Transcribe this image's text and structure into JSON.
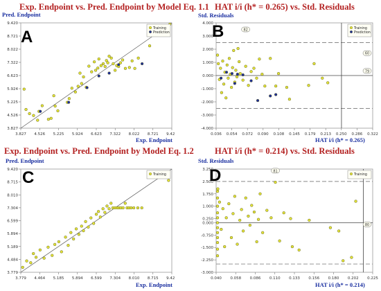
{
  "chart_data": [
    {
      "panel": "A",
      "type": "scatter",
      "title": "Exp. Endpoint vs. Pred. Endpoint by Model Eq. 1.1",
      "xlabel": "Exp. Endpoint",
      "ylabel": "Pred. Endpoint",
      "xticks": [
        "3.827",
        "4.526",
        "5.225",
        "5.924",
        "6.623",
        "7.322",
        "8.022",
        "8.721",
        "9.420"
      ],
      "yticks": [
        "3.827",
        "4.526",
        "5.225",
        "5.924",
        "6.623",
        "7.322",
        "8.022",
        "8.721",
        "9.420"
      ],
      "xlim": [
        3.827,
        9.42
      ],
      "ylim": [
        3.827,
        9.42
      ],
      "reference_line": "y = x",
      "legend_position": "top-right",
      "colors": {
        "Training": "#e3e33a",
        "Prediction": "#1c2e9a"
      },
      "series": [
        {
          "name": "Training",
          "points": [
            [
              3.95,
              5.9
            ],
            [
              4.02,
              4.82
            ],
            [
              4.15,
              4.6
            ],
            [
              4.3,
              4.5
            ],
            [
              4.45,
              4.25
            ],
            [
              4.5,
              4.72
            ],
            [
              4.62,
              5.02
            ],
            [
              4.85,
              4.3
            ],
            [
              4.95,
              4.35
            ],
            [
              5.05,
              5.55
            ],
            [
              5.1,
              5.0
            ],
            [
              5.2,
              4.75
            ],
            [
              5.55,
              5.2
            ],
            [
              5.62,
              5.4
            ],
            [
              5.72,
              5.95
            ],
            [
              5.85,
              5.75
            ],
            [
              5.95,
              6.05
            ],
            [
              6.02,
              6.75
            ],
            [
              6.08,
              6.2
            ],
            [
              6.15,
              6.55
            ],
            [
              6.25,
              6.0
            ],
            [
              6.35,
              7.12
            ],
            [
              6.45,
              6.82
            ],
            [
              6.55,
              7.35
            ],
            [
              6.6,
              6.9
            ],
            [
              6.68,
              7.02
            ],
            [
              6.72,
              7.5
            ],
            [
              6.8,
              7.15
            ],
            [
              6.88,
              7.25
            ],
            [
              6.95,
              7.1
            ],
            [
              7.0,
              7.42
            ],
            [
              7.05,
              7.3
            ],
            [
              7.1,
              7.65
            ],
            [
              7.18,
              7.55
            ],
            [
              7.25,
              7.25
            ],
            [
              7.32,
              6.9
            ],
            [
              7.38,
              7.15
            ],
            [
              7.45,
              7.1
            ],
            [
              7.52,
              7.3
            ],
            [
              7.6,
              7.45
            ],
            [
              7.7,
              7.0
            ],
            [
              7.85,
              7.05
            ],
            [
              7.95,
              7.4
            ],
            [
              8.05,
              7.0
            ],
            [
              8.18,
              7.55
            ],
            [
              8.6,
              8.2
            ],
            [
              9.35,
              9.35
            ]
          ]
        },
        {
          "name": "Prediction",
          "points": [
            [
              4.55,
              4.72
            ],
            [
              6.28,
              5.98
            ],
            [
              6.72,
              6.6
            ],
            [
              7.1,
              6.75
            ],
            [
              7.45,
              7.2
            ],
            [
              8.32,
              7.25
            ],
            [
              5.6,
              5.2
            ]
          ]
        }
      ]
    },
    {
      "panel": "B",
      "type": "scatter",
      "title": "HAT i/i (h* = 0.265) vs. Std. Residuals",
      "xlabel": "HAT i/i (h* = 0.265)",
      "ylabel": "Std. Residuals",
      "xticks": [
        "0.036",
        "0.054",
        "0.072",
        "0.090",
        "0.108",
        "0.145",
        "0.179",
        "0.213",
        "0.250",
        "0.286",
        "0.322"
      ],
      "yticks": [
        "4.000",
        "3.000",
        "2.000",
        "1.000",
        "0.000",
        "-1.000",
        "-2.000",
        "-3.000",
        "-4.000"
      ],
      "xlim": [
        0.036,
        0.322
      ],
      "ylim": [
        -4.0,
        4.0
      ],
      "reference_lines": {
        "h_star": 0.265,
        "residual_limits": [
          2.5,
          -2.5
        ]
      },
      "annotations": [
        {
          "text": "82",
          "x": 0.09,
          "y": 3.5
        },
        {
          "text": "60",
          "x": 0.322,
          "y": 1.7
        },
        {
          "text": "79",
          "x": 0.322,
          "y": 0.35
        }
      ],
      "legend_position": "top-right",
      "colors": {
        "Training": "#e3e33a",
        "Prediction": "#1c2e9a"
      },
      "series": [
        {
          "name": "Training",
          "points": [
            [
              0.038,
              1.55
            ],
            [
              0.04,
              0.9
            ],
            [
              0.042,
              -0.3
            ],
            [
              0.044,
              0.55
            ],
            [
              0.046,
              -1.3
            ],
            [
              0.048,
              1.1
            ],
            [
              0.05,
              -0.65
            ],
            [
              0.052,
              0.25
            ],
            [
              0.054,
              -1.7
            ],
            [
              0.056,
              0.8
            ],
            [
              0.058,
              -0.2
            ],
            [
              0.06,
              1.3
            ],
            [
              0.062,
              0.1
            ],
            [
              0.064,
              -0.9
            ],
            [
              0.066,
              0.6
            ],
            [
              0.068,
              1.9
            ],
            [
              0.07,
              -0.5
            ],
            [
              0.072,
              0.4
            ],
            [
              0.074,
              -0.1
            ],
            [
              0.076,
              2.05
            ],
            [
              0.078,
              1.05
            ],
            [
              0.08,
              0.15
            ],
            [
              0.085,
              -0.35
            ],
            [
              0.09,
              0.7
            ],
            [
              0.095,
              -0.75
            ],
            [
              0.1,
              0.3
            ],
            [
              0.105,
              0.55
            ],
            [
              0.11,
              -0.2
            ],
            [
              0.115,
              1.25
            ],
            [
              0.12,
              0.1
            ],
            [
              0.125,
              -0.8
            ],
            [
              0.135,
              1.3
            ],
            [
              0.145,
              -0.8
            ],
            [
              0.15,
              0.15
            ],
            [
              0.165,
              -0.9
            ],
            [
              0.17,
              -1.8
            ],
            [
              0.205,
              -0.75
            ],
            [
              0.215,
              0.9
            ],
            [
              0.23,
              -0.2
            ],
            [
              0.24,
              -0.55
            ]
          ]
        },
        {
          "name": "Prediction",
          "points": [
            [
              0.045,
              -0.2
            ],
            [
              0.055,
              0.25
            ],
            [
              0.065,
              0.15
            ],
            [
              0.07,
              -0.6
            ],
            [
              0.075,
              0.1
            ],
            [
              0.085,
              0.05
            ],
            [
              0.1,
              -0.4
            ],
            [
              0.112,
              -1.9
            ],
            [
              0.135,
              -1.55
            ],
            [
              0.145,
              -1.45
            ]
          ]
        }
      ]
    },
    {
      "panel": "C",
      "type": "scatter",
      "title": "Exp. Endpoint vs. Pred. Endpoint by Model Eq. 1.2",
      "xlabel": "Exp. Endpoint",
      "ylabel": "Pred. Endpoint",
      "xticks": [
        "3.779",
        "4.464",
        "5.185",
        "5.894",
        "6.599",
        "7.304",
        "8.010",
        "8.715",
        "9.420"
      ],
      "yticks": [
        "3.779",
        "4.484",
        "5.189",
        "5.894",
        "6.599",
        "7.304",
        "8.010",
        "8.715",
        "9.420"
      ],
      "xlim": [
        3.779,
        9.42
      ],
      "ylim": [
        3.779,
        9.42
      ],
      "reference_line": "y = x",
      "legend_position": "top-right",
      "colors": {
        "Training": "#e3e33a"
      },
      "series": [
        {
          "name": "Training",
          "points": [
            [
              3.85,
              4.05
            ],
            [
              4.0,
              4.4
            ],
            [
              4.15,
              4.3
            ],
            [
              4.25,
              4.8
            ],
            [
              4.35,
              4.6
            ],
            [
              4.5,
              5.0
            ],
            [
              4.65,
              4.55
            ],
            [
              4.8,
              5.15
            ],
            [
              4.95,
              4.7
            ],
            [
              5.05,
              5.3
            ],
            [
              5.2,
              5.45
            ],
            [
              5.3,
              4.9
            ],
            [
              5.45,
              5.7
            ],
            [
              5.55,
              5.25
            ],
            [
              5.65,
              5.95
            ],
            [
              5.75,
              5.6
            ],
            [
              5.85,
              6.15
            ],
            [
              5.95,
              5.85
            ],
            [
              6.05,
              6.3
            ],
            [
              6.12,
              6.05
            ],
            [
              6.2,
              6.55
            ],
            [
              6.3,
              6.25
            ],
            [
              6.4,
              6.75
            ],
            [
              6.5,
              6.45
            ],
            [
              6.6,
              6.95
            ],
            [
              6.68,
              7.1
            ],
            [
              6.75,
              6.8
            ],
            [
              6.85,
              7.25
            ],
            [
              6.92,
              7.05
            ],
            [
              7.0,
              7.4
            ],
            [
              7.08,
              7.25
            ],
            [
              7.15,
              7.55
            ],
            [
              7.22,
              7.3
            ],
            [
              7.3,
              7.3
            ],
            [
              7.38,
              7.3
            ],
            [
              7.45,
              7.3
            ],
            [
              7.52,
              7.3
            ],
            [
              7.6,
              7.3
            ],
            [
              7.68,
              7.55
            ],
            [
              7.75,
              7.3
            ],
            [
              7.82,
              7.3
            ],
            [
              7.9,
              7.3
            ],
            [
              8.0,
              7.3
            ],
            [
              8.15,
              7.3
            ],
            [
              8.3,
              7.3
            ],
            [
              9.3,
              8.8
            ]
          ]
        }
      ]
    },
    {
      "panel": "D",
      "type": "scatter",
      "title": "HAT i/i (h* = 0.214) vs. Std. Residuals",
      "xlabel": "HAT i/i (h* = 0.214)",
      "ylabel": "Std. Residuals",
      "xticks": [
        "0.040",
        "0.058",
        "0.086",
        "0.110",
        "0.133",
        "0.156",
        "0.180",
        "0.202",
        "0.225"
      ],
      "yticks": [
        "3.250",
        "2.500",
        "1.750",
        "1.000",
        "0.250",
        "0.000",
        "-0.750",
        "-1.500",
        "-2.250",
        "-3.000"
      ],
      "ytick_values": [
        3.25,
        2.5,
        1.75,
        1.0,
        0.25,
        0.0,
        -0.75,
        -1.5,
        -2.25,
        -3.0
      ],
      "xlim": [
        0.04,
        0.225
      ],
      "ylim": [
        -3.0,
        3.25
      ],
      "reference_lines": {
        "h_star": 0.214,
        "residual_limits": [
          2.5,
          -2.5
        ]
      },
      "annotations": [
        {
          "text": "81",
          "x": 0.11,
          "y": 3.15
        },
        {
          "text": "80",
          "x": 0.225,
          "y": -0.1
        }
      ],
      "legend_position": "top-right",
      "colors": {
        "Training": "#e3e33a"
      },
      "series": [
        {
          "name": "Training",
          "points": [
            [
              0.04,
              1.9
            ],
            [
              0.04,
              1.5
            ],
            [
              0.04,
              1.0
            ],
            [
              0.04,
              0.6
            ],
            [
              0.04,
              0.3
            ],
            [
              0.04,
              0.0
            ],
            [
              0.04,
              -0.3
            ],
            [
              0.04,
              -0.6
            ],
            [
              0.04,
              -0.9
            ],
            [
              0.04,
              -1.2
            ],
            [
              0.04,
              -1.6
            ],
            [
              0.04,
              -2.0
            ],
            [
              0.042,
              2.05
            ],
            [
              0.044,
              1.25
            ],
            [
              0.046,
              -0.4
            ],
            [
              0.048,
              0.85
            ],
            [
              0.05,
              -1.45
            ],
            [
              0.052,
              0.3
            ],
            [
              0.055,
              1.15
            ],
            [
              0.058,
              -0.9
            ],
            [
              0.06,
              0.55
            ],
            [
              0.062,
              1.6
            ],
            [
              0.065,
              -1.3
            ],
            [
              0.068,
              0.15
            ],
            [
              0.07,
              0.8
            ],
            [
              0.072,
              -0.5
            ],
            [
              0.075,
              1.5
            ],
            [
              0.078,
              0.4
            ],
            [
              0.08,
              -0.15
            ],
            [
              0.082,
              1.05
            ],
            [
              0.085,
              0.65
            ],
            [
              0.088,
              -1.15
            ],
            [
              0.09,
              0.2
            ],
            [
              0.092,
              1.75
            ],
            [
              0.095,
              -0.6
            ],
            [
              0.1,
              0.75
            ],
            [
              0.105,
              0.3
            ],
            [
              0.11,
              2.45
            ],
            [
              0.115,
              -1.1
            ],
            [
              0.12,
              0.6
            ],
            [
              0.128,
              0.25
            ],
            [
              0.13,
              -1.45
            ],
            [
              0.138,
              -1.65
            ],
            [
              0.15,
              0.15
            ],
            [
              0.175,
              -0.3
            ],
            [
              0.185,
              -0.5
            ],
            [
              0.19,
              -2.3
            ],
            [
              0.2,
              -2.1
            ],
            [
              0.205,
              1.3
            ]
          ]
        }
      ]
    }
  ]
}
